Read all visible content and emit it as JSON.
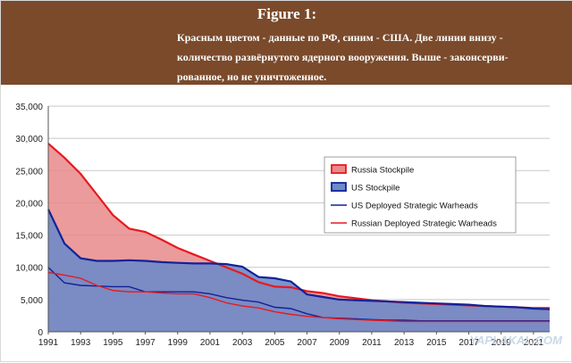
{
  "banner": {
    "title": "Figure 1:",
    "text": "Красным цветом - данные по РФ, синим - США. Две линии внизу -\nколичество развёрнутого ядерного вооружения. Выше - законсерви-\nрованное, но не уничтоженное."
  },
  "watermark": "YAPLAKAL.COM",
  "colors": {
    "banner_bg": "#7a4a2b",
    "russia_fill": "#e88a8a",
    "russia_line": "#e8191e",
    "us_fill": "#6f8ac8",
    "us_line": "#10229a",
    "grid": "#c8c8c8"
  },
  "chart_data": {
    "type": "area",
    "xlim": [
      1991,
      2022
    ],
    "ylim": [
      0,
      35000
    ],
    "x_ticks": [
      "1991",
      "1993",
      "1995",
      "1997",
      "1999",
      "2001",
      "2003",
      "2005",
      "2007",
      "2009",
      "2011",
      "2013",
      "2015",
      "2017",
      "2019",
      "2021"
    ],
    "y_ticks": [
      "0",
      "5,000",
      "10,000",
      "15,000",
      "20,000",
      "25,000",
      "30,000",
      "35,000"
    ],
    "grid": true,
    "legend_position": "center-right",
    "series": [
      {
        "name": "Russia Stockpile",
        "kind": "area",
        "x": [
          1991,
          1992,
          1993,
          1994,
          1995,
          1996,
          1997,
          1998,
          1999,
          2000,
          2001,
          2002,
          2003,
          2004,
          2005,
          2006,
          2007,
          2008,
          2009,
          2010,
          2011,
          2012,
          2013,
          2014,
          2015,
          2016,
          2017,
          2018,
          2019,
          2020,
          2021,
          2022
        ],
        "values": [
          29200,
          27000,
          24500,
          21300,
          18100,
          16000,
          15500,
          14300,
          13000,
          12000,
          11000,
          10000,
          9000,
          7700,
          7000,
          6900,
          6300,
          6000,
          5500,
          5200,
          4900,
          4700,
          4500,
          4400,
          4300,
          4200,
          4100,
          4000,
          3900,
          3800,
          3700,
          3700
        ]
      },
      {
        "name": "US Stockpile",
        "kind": "area",
        "x": [
          1991,
          1992,
          1993,
          1994,
          1995,
          1996,
          1997,
          1998,
          1999,
          2000,
          2001,
          2002,
          2003,
          2004,
          2005,
          2006,
          2007,
          2008,
          2009,
          2010,
          2011,
          2012,
          2013,
          2014,
          2015,
          2016,
          2017,
          2018,
          2019,
          2020,
          2021,
          2022
        ],
        "values": [
          19000,
          13700,
          11400,
          11000,
          11000,
          11100,
          11000,
          10800,
          10700,
          10600,
          10600,
          10500,
          10100,
          8500,
          8300,
          7800,
          5800,
          5400,
          5000,
          4900,
          4800,
          4700,
          4600,
          4500,
          4400,
          4300,
          4200,
          4000,
          3900,
          3800,
          3600,
          3500
        ]
      },
      {
        "name": "US Deployed Strategic Warheads",
        "kind": "line",
        "x": [
          1991,
          1992,
          1993,
          1994,
          1995,
          1996,
          1997,
          1998,
          1999,
          2000,
          2001,
          2002,
          2003,
          2004,
          2005,
          2006,
          2007,
          2008,
          2009,
          2010,
          2011,
          2012,
          2013,
          2014,
          2015,
          2016,
          2017,
          2018,
          2019,
          2020,
          2021,
          2022
        ],
        "values": [
          10000,
          7600,
          7200,
          7100,
          7000,
          7000,
          6200,
          6200,
          6200,
          6200,
          5900,
          5300,
          4900,
          4600,
          3800,
          3600,
          2800,
          2200,
          2100,
          2000,
          1900,
          1800,
          1800,
          1700,
          1700,
          1700,
          1700,
          1700,
          1700,
          1700,
          1700,
          1700
        ]
      },
      {
        "name": "Russian Deployed Strategic Warheads",
        "kind": "line",
        "x": [
          1991,
          1992,
          1993,
          1994,
          1995,
          1996,
          1997,
          1998,
          1999,
          2000,
          2001,
          2002,
          2003,
          2004,
          2005,
          2006,
          2007,
          2008,
          2009,
          2010,
          2011,
          2012,
          2013,
          2014,
          2015,
          2016,
          2017,
          2018,
          2019,
          2020,
          2021,
          2022
        ],
        "values": [
          9200,
          8800,
          8300,
          7200,
          6400,
          6200,
          6200,
          6000,
          5900,
          5900,
          5300,
          4500,
          4000,
          3700,
          3100,
          2700,
          2400,
          2200,
          2000,
          1900,
          1800,
          1700,
          1600,
          1600,
          1600,
          1600,
          1600,
          1600,
          1600,
          1600,
          1600,
          1600
        ]
      }
    ]
  }
}
